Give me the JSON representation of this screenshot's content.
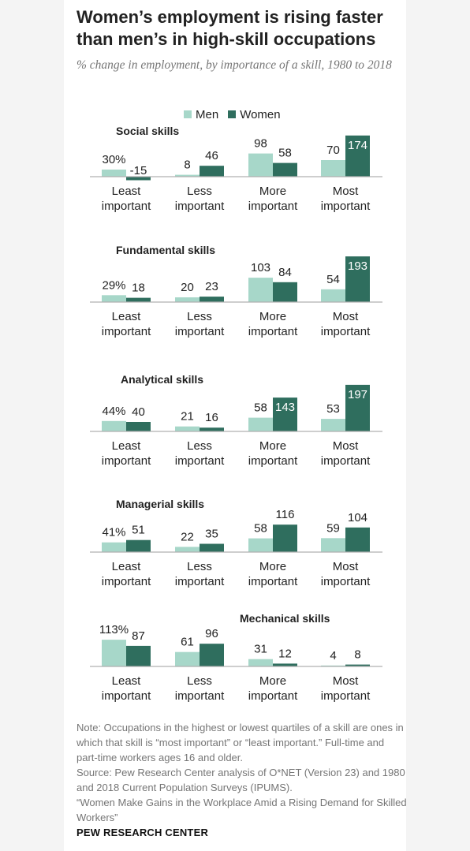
{
  "title": "Women’s employment is rising faster than men’s in high-skill occupations",
  "subtitle": "% change in employment, by importance of a skill, 1980 to 2018",
  "legend": {
    "men": "Men",
    "women": "Women"
  },
  "colors": {
    "men": "#a7d7c9",
    "women": "#2f6e5e",
    "axis": "#b0b0b0"
  },
  "categories": [
    [
      "Least",
      "important"
    ],
    [
      "Less",
      "important"
    ],
    [
      "More",
      "important"
    ],
    [
      "Most",
      "important"
    ]
  ],
  "chart_data": [
    {
      "type": "bar",
      "title": "Social skills",
      "categories": [
        "Least important",
        "Less important",
        "More important",
        "Most important"
      ],
      "series": [
        {
          "name": "Men",
          "values": [
            30,
            8,
            98,
            70
          ]
        },
        {
          "name": "Women",
          "values": [
            -15,
            46,
            58,
            174
          ]
        }
      ],
      "value_labels": {
        "Men": [
          "30%",
          "8",
          "98",
          "70"
        ],
        "Women": [
          "-15",
          "46",
          "58",
          "174"
        ]
      }
    },
    {
      "type": "bar",
      "title": "Fundamental skills",
      "categories": [
        "Least important",
        "Less important",
        "More important",
        "Most important"
      ],
      "series": [
        {
          "name": "Men",
          "values": [
            29,
            20,
            103,
            54
          ]
        },
        {
          "name": "Women",
          "values": [
            18,
            23,
            84,
            193
          ]
        }
      ],
      "value_labels": {
        "Men": [
          "29%",
          "20",
          "103",
          "54"
        ],
        "Women": [
          "18",
          "23",
          "84",
          "193"
        ]
      }
    },
    {
      "type": "bar",
      "title": "Analytical skills",
      "categories": [
        "Least important",
        "Less important",
        "More important",
        "Most important"
      ],
      "series": [
        {
          "name": "Men",
          "values": [
            44,
            21,
            58,
            53
          ]
        },
        {
          "name": "Women",
          "values": [
            40,
            16,
            143,
            197
          ]
        }
      ],
      "value_labels": {
        "Men": [
          "44%",
          "21",
          "58",
          "53"
        ],
        "Women": [
          "40",
          "16",
          "143",
          "197"
        ]
      }
    },
    {
      "type": "bar",
      "title": "Managerial skills",
      "categories": [
        "Least important",
        "Less important",
        "More important",
        "Most important"
      ],
      "series": [
        {
          "name": "Men",
          "values": [
            41,
            22,
            58,
            59
          ]
        },
        {
          "name": "Women",
          "values": [
            51,
            35,
            116,
            104
          ]
        }
      ],
      "value_labels": {
        "Men": [
          "41%",
          "22",
          "58",
          "59"
        ],
        "Women": [
          "51",
          "35",
          "116",
          "104"
        ]
      }
    },
    {
      "type": "bar",
      "title": "Mechanical skills",
      "categories": [
        "Least important",
        "Less important",
        "More important",
        "Most important"
      ],
      "series": [
        {
          "name": "Men",
          "values": [
            113,
            61,
            31,
            4
          ]
        },
        {
          "name": "Women",
          "values": [
            87,
            96,
            12,
            8
          ]
        }
      ],
      "value_labels": {
        "Men": [
          "113%",
          "61",
          "31",
          "4"
        ],
        "Women": [
          "87",
          "96",
          "12",
          "8"
        ]
      }
    }
  ],
  "notes": [
    "Note: Occupations in the highest or lowest quartiles of a skill are ones in which that skill is “most important” or “least important.” Full-time and part-time workers ages 16 and older.",
    "Source: Pew Research Center analysis of O*NET (Version 23) and 1980 and 2018 Current Population Surveys (IPUMS).",
    "“Women Make Gains in the Workplace Amid a Rising Demand for Skilled Workers”"
  ],
  "brand": "PEW RESEARCH CENTER"
}
